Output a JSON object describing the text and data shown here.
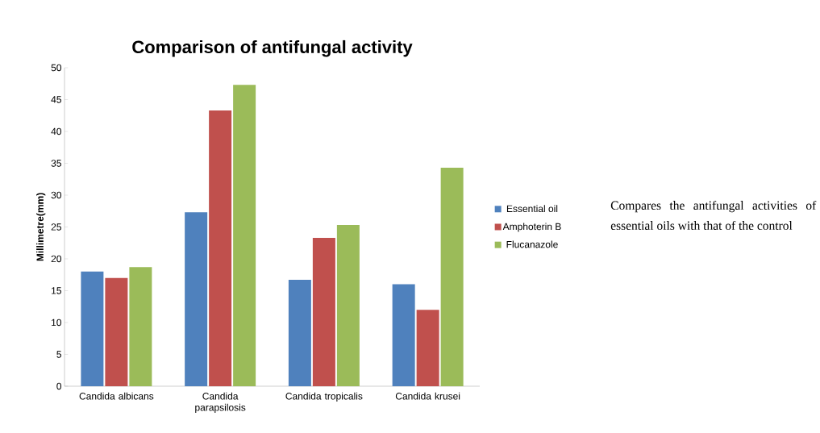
{
  "chart_data": {
    "type": "bar",
    "title": "Comparison of antifungal activity",
    "ylabel": "Millimetre(mm)",
    "categories": [
      "Candida albicans",
      "Candida parapsilosis",
      "Candida tropicalis",
      "Candida krusei"
    ],
    "series": [
      {
        "name": "Essential oil",
        "color": "#4f81bd",
        "values": [
          18,
          27.3,
          16.7,
          16
        ]
      },
      {
        "name": "Amphoterin B",
        "color": "#c0504d",
        "values": [
          17,
          43.3,
          23.3,
          12
        ]
      },
      {
        "name": "Flucanazole",
        "color": "#9bbb59",
        "values": [
          18.7,
          47.3,
          25.3,
          34.3
        ]
      }
    ],
    "ylim": [
      0,
      50
    ],
    "yticks": [
      0,
      5,
      10,
      15,
      20,
      25,
      30,
      35,
      40,
      45,
      50
    ],
    "legend": "right",
    "annotations": [
      "Compares the antifungal activities of essential oils with that of the control"
    ]
  }
}
